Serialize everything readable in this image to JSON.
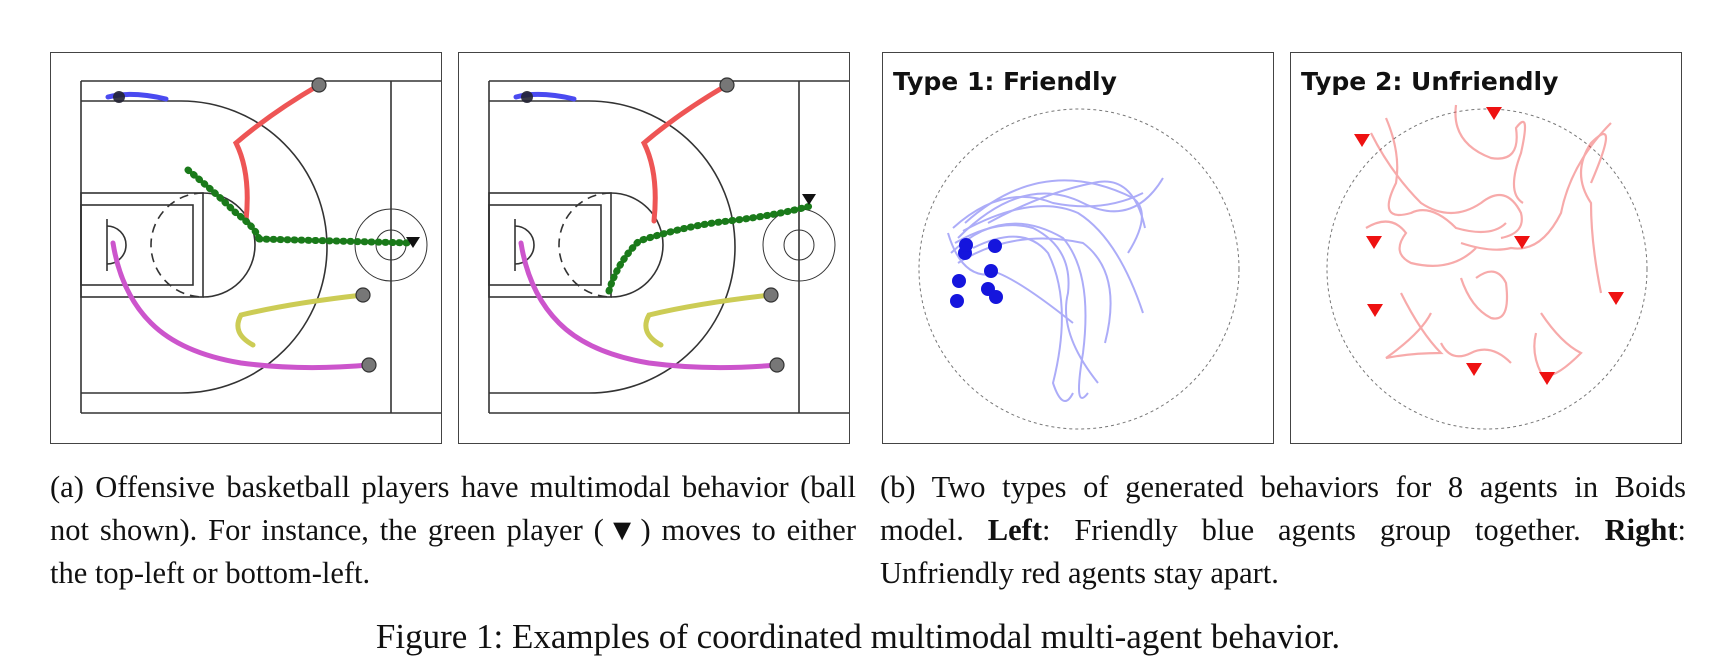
{
  "panels": {
    "boids_left_title": "Type 1: Friendly",
    "boids_right_title": "Type 2: Unfriendly"
  },
  "colors": {
    "blue_track": "#3a3ae8",
    "red_track": "#ee4444",
    "green_player": "#1a7a1a",
    "magenta_player": "#cc44cc",
    "yellow_player": "#c8c84a",
    "court_line": "#333333"
  },
  "captions": {
    "a_text": "(a) Offensive basketball players have multimodal behavior (ball not shown). For instance, the green player (▼) moves to either the top-left or bottom-left.",
    "b_prefix": "(b) Two types of generated behaviors for 8 agents in Boids model.",
    "b_left_label": "Left",
    "b_left_text": ": Friendly blue agents group together.",
    "b_right_label": "Right",
    "b_right_text": ": Unfriendly red agents stay apart."
  },
  "figure_caption": "Figure 1: Examples of coordinated multimodal multi-agent behavior."
}
